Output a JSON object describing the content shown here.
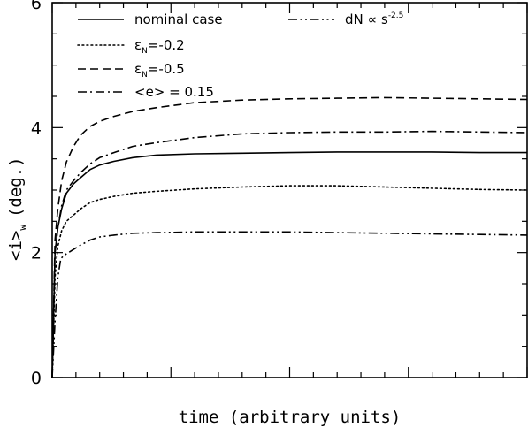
{
  "chart_data": {
    "type": "line",
    "title": "",
    "xlabel": "time (arbitrary units)",
    "ylabel_parts": {
      "main": "<i>",
      "sub": "w",
      "tail": "(deg.)"
    },
    "xlim": [
      0,
      1
    ],
    "ylim": [
      0,
      6
    ],
    "y_ticks": [
      0,
      2,
      4,
      6
    ],
    "y_ticks_labels": [
      "0",
      "2",
      "4",
      "6"
    ],
    "grid": false,
    "legend_placement": "top",
    "series": [
      {
        "name": "nominal case",
        "dash": "solid",
        "x": [
          0,
          0.006,
          0.012,
          0.02,
          0.03,
          0.045,
          0.06,
          0.08,
          0.1,
          0.13,
          0.17,
          0.22,
          0.3,
          0.4,
          0.5,
          0.6,
          0.7,
          0.8,
          0.9,
          1.0
        ],
        "y": [
          0,
          2.0,
          2.4,
          2.7,
          2.95,
          3.1,
          3.2,
          3.33,
          3.4,
          3.46,
          3.52,
          3.56,
          3.58,
          3.59,
          3.6,
          3.61,
          3.61,
          3.61,
          3.6,
          3.6
        ]
      },
      {
        "name_parts": {
          "pre": "ε",
          "sub": "N",
          "post": "=-0.2"
        },
        "dash": "dotted",
        "x": [
          0,
          0.006,
          0.012,
          0.02,
          0.03,
          0.045,
          0.06,
          0.08,
          0.1,
          0.13,
          0.17,
          0.22,
          0.3,
          0.4,
          0.5,
          0.6,
          0.7,
          0.8,
          0.9,
          1.0
        ],
        "y": [
          0,
          1.6,
          2.1,
          2.35,
          2.5,
          2.6,
          2.7,
          2.8,
          2.85,
          2.9,
          2.95,
          2.98,
          3.02,
          3.05,
          3.07,
          3.07,
          3.05,
          3.03,
          3.01,
          3.0
        ]
      },
      {
        "name_parts": {
          "pre": "ε",
          "sub": "N",
          "post": "=-0.5"
        },
        "dash": "dashed",
        "x": [
          0,
          0.006,
          0.012,
          0.02,
          0.03,
          0.045,
          0.06,
          0.08,
          0.1,
          0.13,
          0.17,
          0.22,
          0.3,
          0.4,
          0.5,
          0.6,
          0.7,
          0.8,
          0.9,
          1.0
        ],
        "y": [
          0,
          2.2,
          2.7,
          3.15,
          3.45,
          3.7,
          3.88,
          4.02,
          4.1,
          4.18,
          4.26,
          4.32,
          4.4,
          4.44,
          4.46,
          4.47,
          4.48,
          4.47,
          4.46,
          4.45
        ]
      },
      {
        "name": "<e> = 0.15",
        "dash": "dashdot",
        "x": [
          0,
          0.006,
          0.012,
          0.02,
          0.03,
          0.045,
          0.06,
          0.08,
          0.1,
          0.13,
          0.17,
          0.22,
          0.3,
          0.4,
          0.5,
          0.6,
          0.7,
          0.8,
          0.9,
          1.0
        ],
        "y": [
          0,
          2.0,
          2.4,
          2.75,
          3.0,
          3.15,
          3.28,
          3.42,
          3.52,
          3.6,
          3.7,
          3.76,
          3.84,
          3.9,
          3.92,
          3.93,
          3.93,
          3.94,
          3.93,
          3.92
        ]
      },
      {
        "name_parts": {
          "pre": "dN ∝ s",
          "sup": "-2.5"
        },
        "dash": "dashdotdot",
        "x": [
          0,
          0.006,
          0.012,
          0.018,
          0.024,
          0.03,
          0.045,
          0.06,
          0.08,
          0.1,
          0.13,
          0.17,
          0.22,
          0.3,
          0.4,
          0.5,
          0.6,
          0.7,
          0.8,
          0.9,
          1.0
        ],
        "y": [
          0,
          0.9,
          1.6,
          1.9,
          1.95,
          1.98,
          2.05,
          2.12,
          2.2,
          2.25,
          2.28,
          2.31,
          2.32,
          2.33,
          2.33,
          2.33,
          2.32,
          2.31,
          2.3,
          2.29,
          2.28
        ]
      }
    ]
  }
}
